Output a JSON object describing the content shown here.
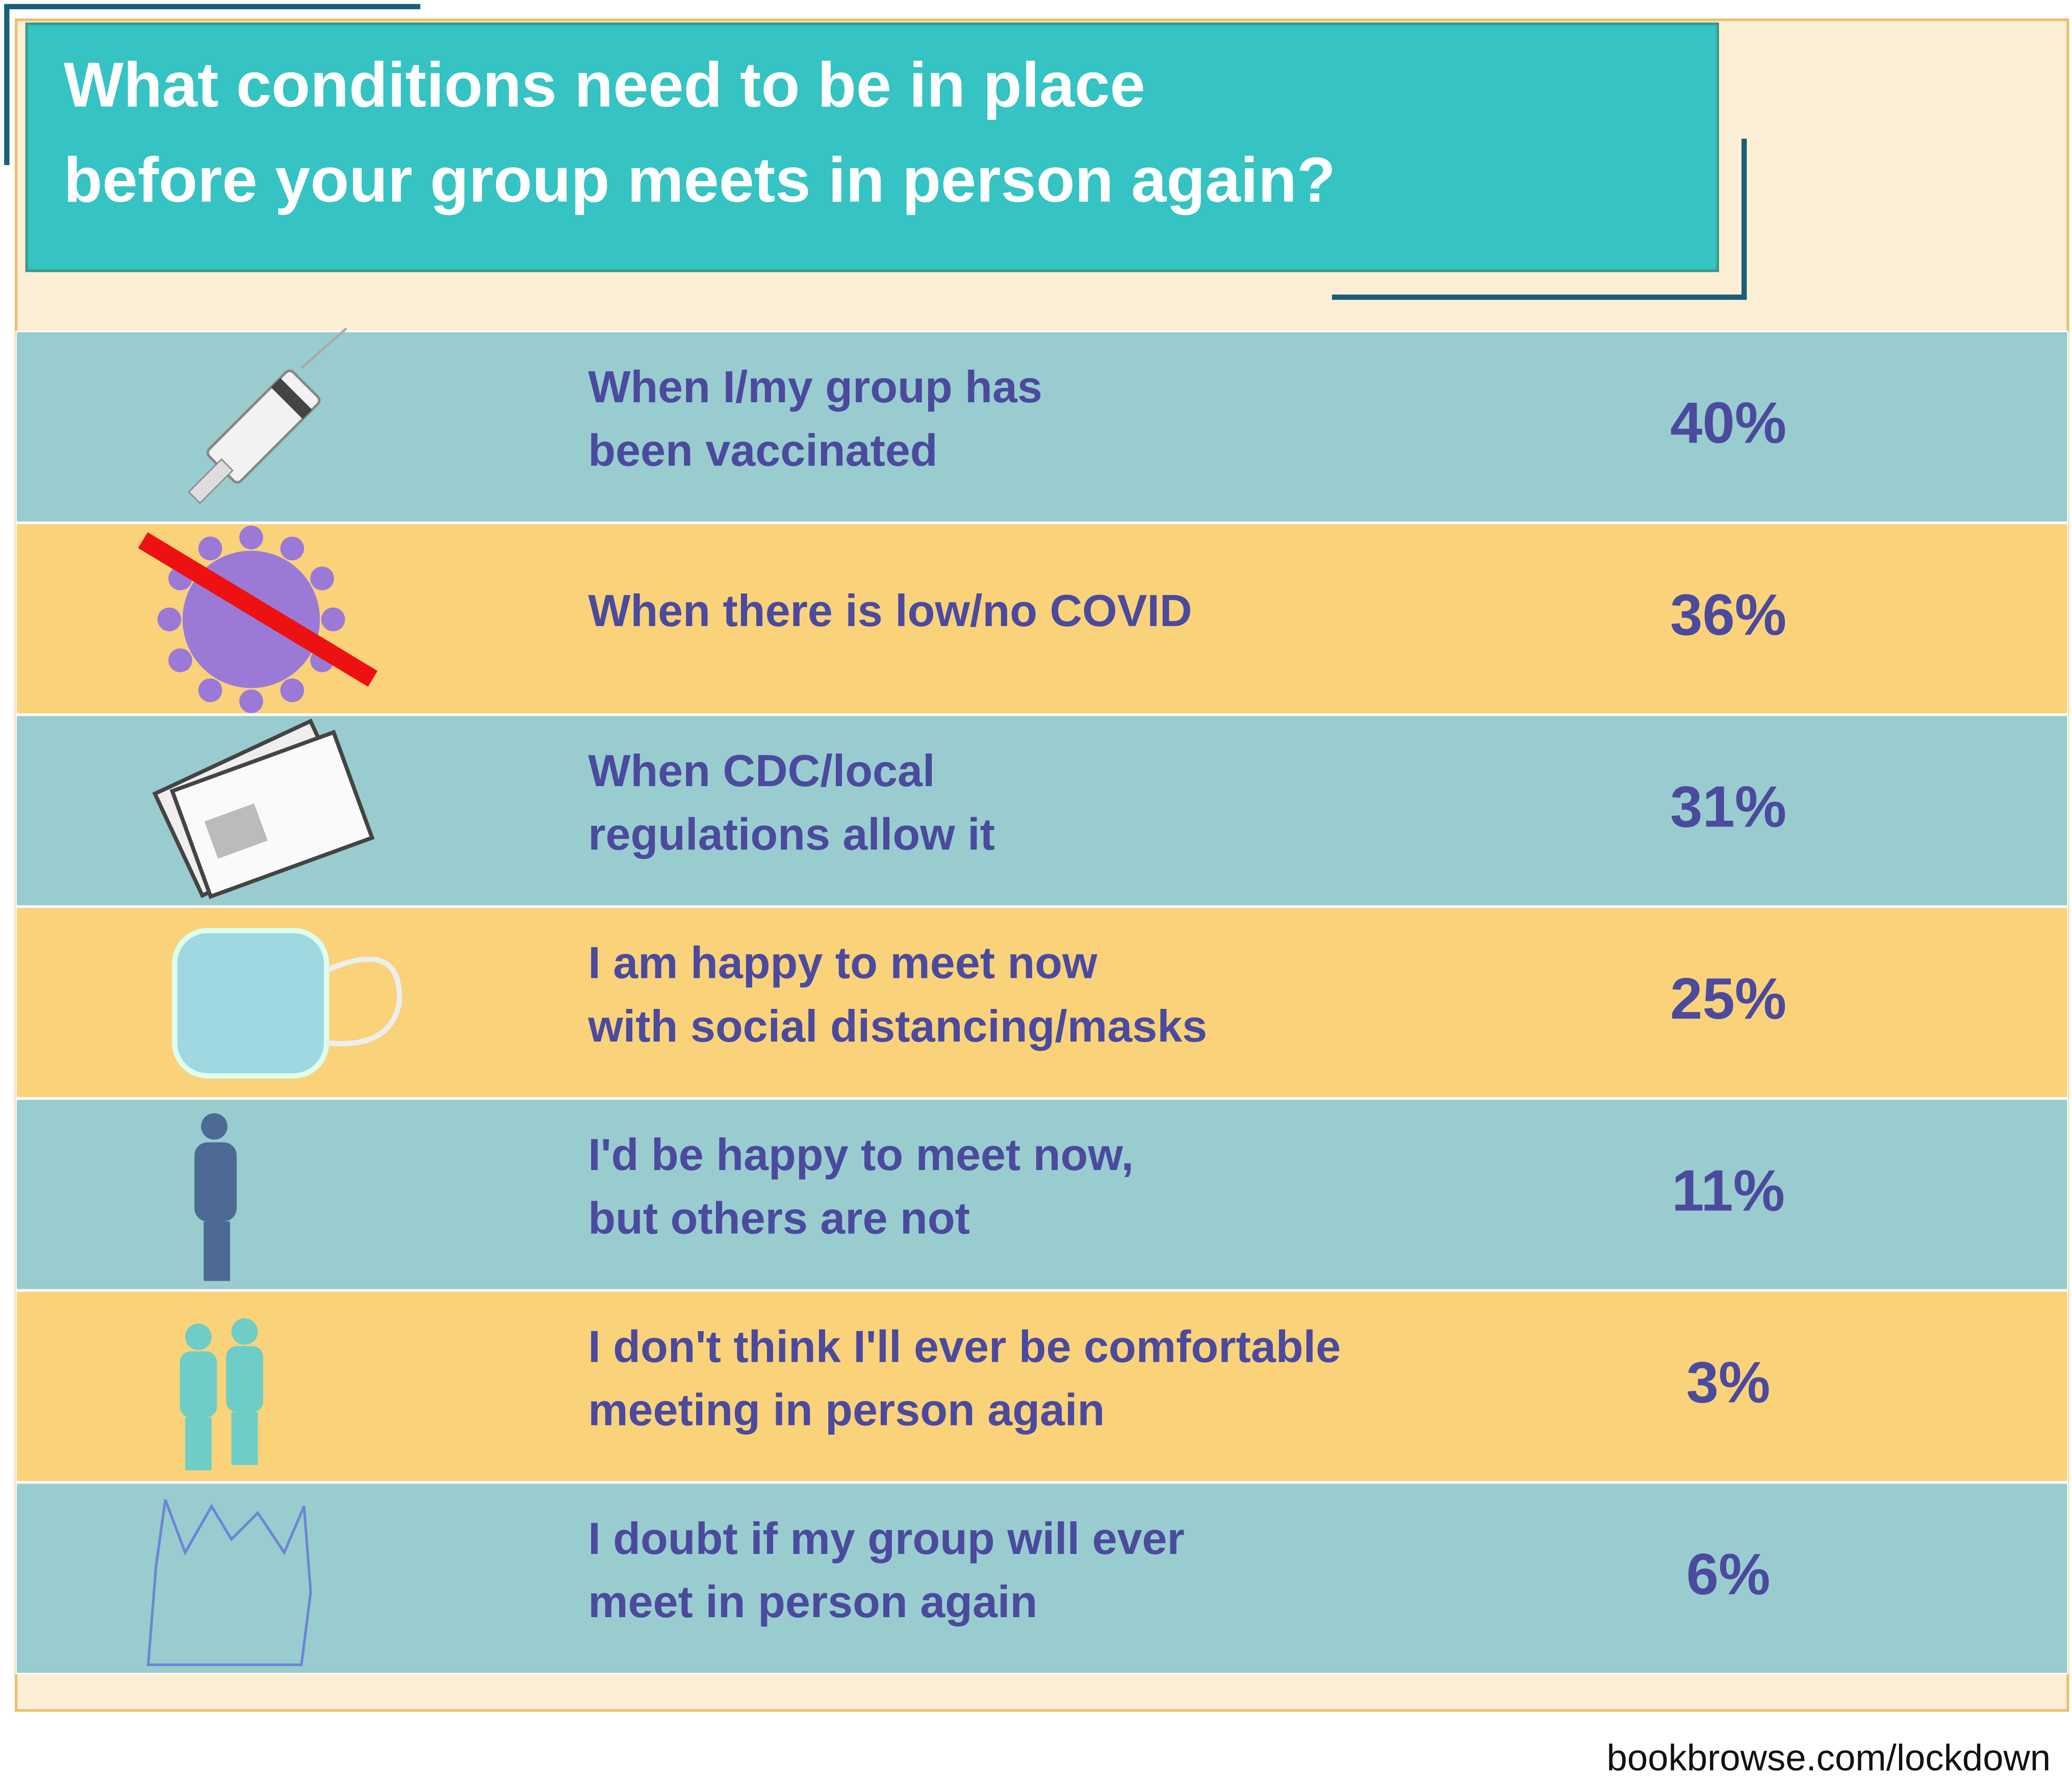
{
  "title": [
    "What conditions need to be in place",
    "before your group meets in person again?"
  ],
  "rows": [
    {
      "label": [
        "When I/my group has",
        "been vaccinated"
      ],
      "value": "40%"
    },
    {
      "label": [
        "When there is low/no COVID"
      ],
      "value": "36%"
    },
    {
      "label": [
        "When CDC/local",
        "regulations allow it"
      ],
      "value": "31%"
    },
    {
      "label": [
        "I am happy to meet now",
        "with social distancing/masks"
      ],
      "value": "25%"
    },
    {
      "label": [
        "I'd be happy to meet now,",
        "but others are not"
      ],
      "value": "11%"
    },
    {
      "label": [
        "I don't think I'll ever be comfortable",
        "meeting in person again"
      ],
      "value": "3%"
    },
    {
      "label": [
        "I doubt if my group will ever",
        "meet in person again"
      ],
      "value": "6%"
    }
  ],
  "footer": "bookbrowse.com/lockdown"
}
